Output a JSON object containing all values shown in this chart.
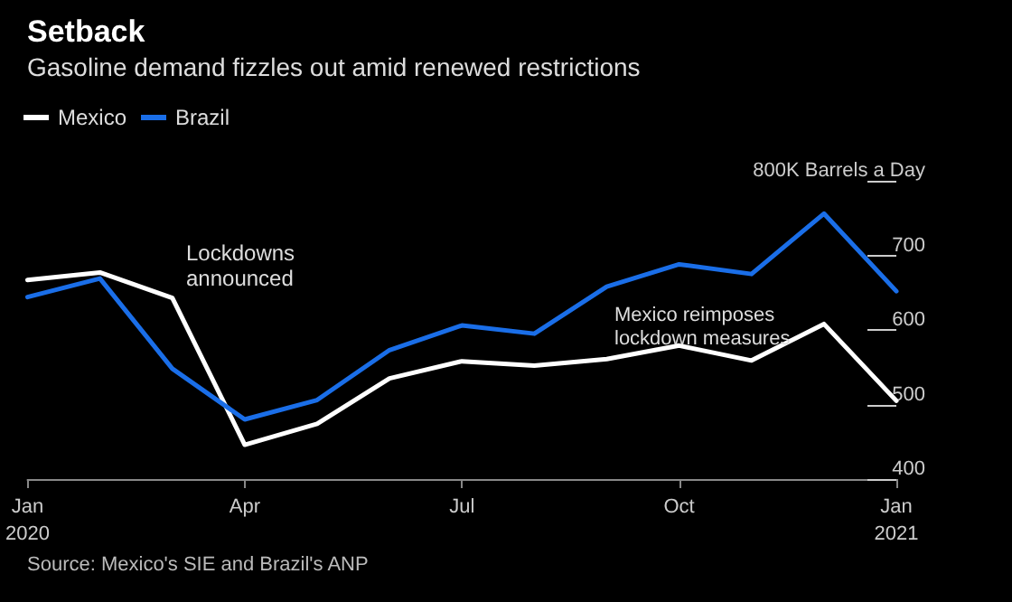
{
  "chart_data": {
    "type": "line",
    "title": "Setback",
    "subtitle": "Gasoline demand fizzles out amid renewed restrictions",
    "categories": [
      "Jan 2020",
      null,
      null,
      "Apr",
      null,
      null,
      "Jul",
      null,
      null,
      "Oct",
      null,
      null,
      "Jan 2021"
    ],
    "series": [
      {
        "name": "Mexico",
        "color": "#ffffff",
        "values": [
          667,
          677,
          643,
          446,
          474,
          535,
          558,
          552,
          561,
          579,
          559,
          608,
          505
        ]
      },
      {
        "name": "Brazil",
        "color": "#1a6ee8",
        "values": [
          644,
          669,
          548,
          480,
          506,
          573,
          606,
          595,
          658,
          688,
          675,
          756,
          652
        ]
      }
    ],
    "ylim": [
      400,
      800
    ],
    "yticks": [
      400,
      500,
      600,
      700,
      {
        "value": 800,
        "label": "800K Barrels a Day"
      }
    ],
    "grid": false,
    "legend": "top left",
    "marker": "none",
    "line_style": "solid",
    "annotations": [
      "Lockdowns announced",
      "Mexico reimposes lockdown measures",
      "Source: Mexico's SIE and Brazil's ANP"
    ]
  }
}
